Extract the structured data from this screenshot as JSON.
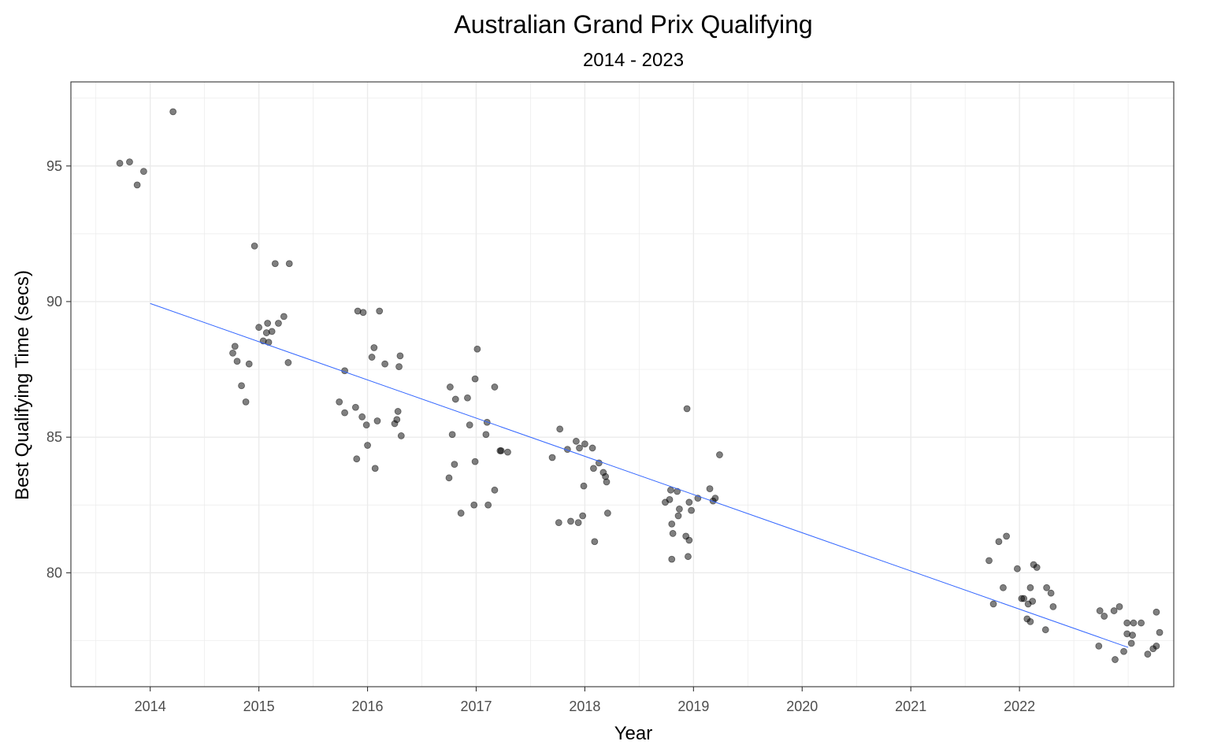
{
  "chart_data": {
    "type": "scatter",
    "title": "Australian Grand Prix Qualifying",
    "subtitle": "2014 - 2023",
    "xlabel": "Year",
    "ylabel": "Best Qualifying Time (secs)",
    "x_tick_labels": [
      "2014",
      "2015",
      "2016",
      "2017",
      "2018",
      "2019",
      "2020",
      "2021",
      "2022"
    ],
    "x_tick_values": [
      2014,
      2015,
      2016,
      2017,
      2018,
      2019,
      2020,
      2021,
      2022
    ],
    "y_tick_labels": [
      "80",
      "85",
      "90",
      "95"
    ],
    "y_tick_values": [
      80,
      85,
      90,
      95
    ],
    "xlim": [
      2013.27,
      2023.42
    ],
    "ylim": [
      75.8,
      98.1
    ],
    "grid": true,
    "points": [
      [
        2013.72,
        95.1
      ],
      [
        2013.81,
        95.15
      ],
      [
        2013.88,
        94.3
      ],
      [
        2013.94,
        94.8
      ],
      [
        2014.21,
        97.0
      ],
      [
        2014.76,
        88.1
      ],
      [
        2014.78,
        88.35
      ],
      [
        2014.8,
        87.8
      ],
      [
        2014.84,
        86.9
      ],
      [
        2014.88,
        86.3
      ],
      [
        2014.91,
        87.7
      ],
      [
        2014.96,
        92.05
      ],
      [
        2015.0,
        89.05
      ],
      [
        2015.04,
        88.55
      ],
      [
        2015.07,
        88.85
      ],
      [
        2015.08,
        89.2
      ],
      [
        2015.09,
        88.5
      ],
      [
        2015.12,
        88.9
      ],
      [
        2015.15,
        91.4
      ],
      [
        2015.18,
        89.2
      ],
      [
        2015.23,
        89.45
      ],
      [
        2015.27,
        87.75
      ],
      [
        2015.28,
        91.4
      ],
      [
        2015.74,
        86.3
      ],
      [
        2015.79,
        85.9
      ],
      [
        2015.79,
        87.45
      ],
      [
        2015.89,
        86.1
      ],
      [
        2015.9,
        84.2
      ],
      [
        2015.91,
        89.65
      ],
      [
        2015.95,
        85.75
      ],
      [
        2015.96,
        89.6
      ],
      [
        2015.99,
        85.45
      ],
      [
        2016.0,
        84.7
      ],
      [
        2016.04,
        87.95
      ],
      [
        2016.06,
        88.3
      ],
      [
        2016.07,
        83.85
      ],
      [
        2016.09,
        85.6
      ],
      [
        2016.11,
        89.65
      ],
      [
        2016.16,
        87.7
      ],
      [
        2016.25,
        85.5
      ],
      [
        2016.27,
        85.65
      ],
      [
        2016.28,
        85.95
      ],
      [
        2016.29,
        87.6
      ],
      [
        2016.3,
        88.0
      ],
      [
        2016.31,
        85.05
      ],
      [
        2016.75,
        83.5
      ],
      [
        2016.76,
        86.85
      ],
      [
        2016.78,
        85.1
      ],
      [
        2016.8,
        84.0
      ],
      [
        2016.81,
        86.4
      ],
      [
        2016.86,
        82.2
      ],
      [
        2016.92,
        86.45
      ],
      [
        2016.94,
        85.45
      ],
      [
        2016.98,
        82.5
      ],
      [
        2016.99,
        84.1
      ],
      [
        2016.99,
        87.15
      ],
      [
        2017.01,
        88.25
      ],
      [
        2017.09,
        85.1
      ],
      [
        2017.1,
        85.55
      ],
      [
        2017.11,
        82.5
      ],
      [
        2017.17,
        86.85
      ],
      [
        2017.17,
        83.05
      ],
      [
        2017.22,
        84.5
      ],
      [
        2017.23,
        84.5
      ],
      [
        2017.29,
        84.45
      ],
      [
        2017.7,
        84.25
      ],
      [
        2017.76,
        81.85
      ],
      [
        2017.77,
        85.3
      ],
      [
        2017.84,
        84.55
      ],
      [
        2017.87,
        81.9
      ],
      [
        2017.92,
        84.85
      ],
      [
        2017.94,
        81.85
      ],
      [
        2017.95,
        84.6
      ],
      [
        2017.98,
        82.1
      ],
      [
        2017.99,
        83.2
      ],
      [
        2018.0,
        84.75
      ],
      [
        2018.07,
        84.6
      ],
      [
        2018.08,
        83.85
      ],
      [
        2018.09,
        81.15
      ],
      [
        2018.13,
        84.05
      ],
      [
        2018.17,
        83.7
      ],
      [
        2018.19,
        83.55
      ],
      [
        2018.2,
        83.35
      ],
      [
        2018.21,
        82.2
      ],
      [
        2018.74,
        82.6
      ],
      [
        2018.78,
        82.7
      ],
      [
        2018.79,
        83.05
      ],
      [
        2018.8,
        80.5
      ],
      [
        2018.8,
        81.8
      ],
      [
        2018.81,
        81.45
      ],
      [
        2018.85,
        83.0
      ],
      [
        2018.86,
        82.1
      ],
      [
        2018.87,
        82.35
      ],
      [
        2018.93,
        81.35
      ],
      [
        2018.94,
        86.05
      ],
      [
        2018.95,
        80.6
      ],
      [
        2018.96,
        81.2
      ],
      [
        2018.96,
        82.6
      ],
      [
        2018.98,
        82.3
      ],
      [
        2019.04,
        82.75
      ],
      [
        2019.15,
        83.1
      ],
      [
        2019.18,
        82.65
      ],
      [
        2019.2,
        82.75
      ],
      [
        2019.24,
        84.35
      ],
      [
        2021.72,
        80.45
      ],
      [
        2021.76,
        78.85
      ],
      [
        2021.81,
        81.15
      ],
      [
        2021.85,
        79.45
      ],
      [
        2021.88,
        81.35
      ],
      [
        2021.98,
        80.15
      ],
      [
        2022.02,
        79.05
      ],
      [
        2022.04,
        79.05
      ],
      [
        2022.07,
        78.3
      ],
      [
        2022.08,
        78.85
      ],
      [
        2022.1,
        79.45
      ],
      [
        2022.1,
        78.2
      ],
      [
        2022.12,
        78.95
      ],
      [
        2022.13,
        80.3
      ],
      [
        2022.16,
        80.2
      ],
      [
        2022.24,
        77.9
      ],
      [
        2022.25,
        79.45
      ],
      [
        2022.29,
        79.25
      ],
      [
        2022.31,
        78.75
      ],
      [
        2022.73,
        77.3
      ],
      [
        2022.74,
        78.6
      ],
      [
        2022.78,
        78.4
      ],
      [
        2022.87,
        78.6
      ],
      [
        2022.88,
        76.8
      ],
      [
        2022.92,
        78.75
      ],
      [
        2022.96,
        77.1
      ],
      [
        2022.99,
        78.15
      ],
      [
        2022.99,
        77.75
      ],
      [
        2023.03,
        77.4
      ],
      [
        2023.04,
        77.7
      ],
      [
        2023.05,
        78.15
      ],
      [
        2023.12,
        78.15
      ],
      [
        2023.18,
        77.0
      ],
      [
        2023.23,
        77.2
      ],
      [
        2023.26,
        77.3
      ],
      [
        2023.26,
        78.55
      ],
      [
        2023.29,
        77.8
      ]
    ],
    "trend_line": {
      "x": [
        2014.0,
        2023.0
      ],
      "y": [
        89.93,
        77.25
      ]
    },
    "colors": {
      "points": "#000000",
      "trend": "#3366ff",
      "grid": "#ebebeb",
      "panel_border": "#333333",
      "tick_label": "#4d4d4d"
    }
  }
}
